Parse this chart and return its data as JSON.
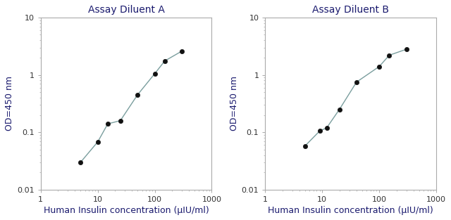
{
  "panel_A": {
    "title": "Assay Diluent A",
    "x": [
      5,
      10,
      15,
      25,
      50,
      100,
      150,
      300
    ],
    "y": [
      0.03,
      0.068,
      0.14,
      0.16,
      0.45,
      1.05,
      1.75,
      2.6
    ],
    "xlabel": "Human Insulin concentration (μIU/ml)",
    "ylabel": "OD=450 nm",
    "xlim": [
      1,
      1000
    ],
    "ylim": [
      0.01,
      10
    ]
  },
  "panel_B": {
    "title": "Assay Diluent B",
    "x": [
      5,
      9,
      12,
      20,
      40,
      100,
      150,
      300
    ],
    "y": [
      0.058,
      0.105,
      0.12,
      0.25,
      0.75,
      1.4,
      2.2,
      2.8
    ],
    "xlabel": "Human Insulin concentration (μIU/ml)",
    "ylabel": "OD=450 nm",
    "xlim": [
      1,
      1000
    ],
    "ylim": [
      0.01,
      10
    ]
  },
  "line_color": "#7a9e9e",
  "marker_color": "#111111",
  "title_color": "#1a1a6e",
  "label_color": "#1a1a6e",
  "tick_color": "#333333",
  "title_fontsize": 10,
  "label_fontsize": 9,
  "tick_fontsize": 8,
  "background_color": "#ffffff",
  "spine_color": "#aaaaaa"
}
